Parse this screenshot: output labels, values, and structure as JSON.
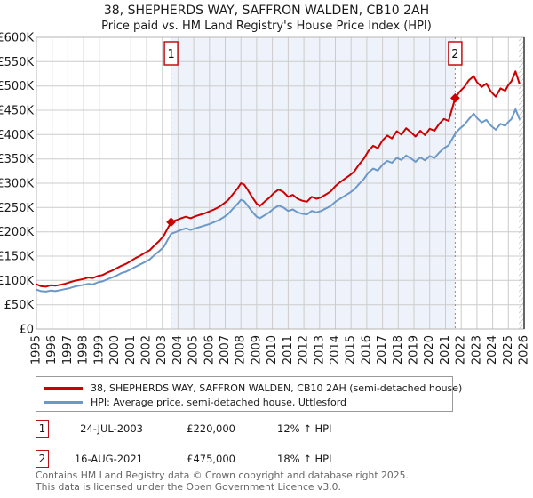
{
  "title": {
    "line1": "38, SHEPHERDS WAY, SAFFRON WALDEN, CB10 2AH",
    "line2": "Price paid vs. HM Land Registry's House Price Index (HPI)"
  },
  "chart_data": {
    "type": "line",
    "x_range": [
      1995,
      2026
    ],
    "y_max_k": 600,
    "values_unit": "GBP thousands",
    "x_ticks": [
      1995,
      1996,
      1997,
      1998,
      1999,
      2000,
      2001,
      2002,
      2003,
      2004,
      2005,
      2006,
      2007,
      2008,
      2009,
      2010,
      2011,
      2012,
      2013,
      2014,
      2015,
      2016,
      2017,
      2018,
      2019,
      2020,
      2021,
      2022,
      2023,
      2024,
      2025,
      2026
    ],
    "y_tick_values": [
      0,
      50,
      100,
      150,
      200,
      250,
      300,
      350,
      400,
      450,
      500,
      550,
      600
    ],
    "y_tick_labels": [
      "£0",
      "£50K",
      "£100K",
      "£150K",
      "£200K",
      "£250K",
      "£300K",
      "£350K",
      "£400K",
      "£450K",
      "£500K",
      "£550K",
      "£600K"
    ],
    "grid": true,
    "legend_position": "bottom",
    "colors": {
      "red": "#cc0000",
      "blue": "#6b98c8",
      "shaded": "#eef2fa",
      "grid": "#cccccc",
      "border": "#b5b5b5",
      "right_edge": "#555555",
      "dashed": "#e66a6a",
      "hatch": "#c9c9c9",
      "marker_box": "#c01015"
    },
    "shaded_span": [
      2003.56,
      2021.62
    ],
    "hatch_span": [
      2025.67,
      2026
    ],
    "markers": [
      {
        "label": "1",
        "date_year": 2003.56,
        "price_k": 220
      },
      {
        "label": "2",
        "date_year": 2021.62,
        "price_k": 475
      }
    ],
    "series": [
      {
        "id": "price-paid",
        "name": "38, SHEPHERDS WAY, SAFFRON WALDEN, CB10 2AH (semi-detached house)",
        "color": "#cc0000",
        "points": [
          [
            1995.0,
            92
          ],
          [
            1995.3,
            88
          ],
          [
            1995.6,
            87
          ],
          [
            1995.9,
            90
          ],
          [
            1996.2,
            89
          ],
          [
            1996.5,
            91
          ],
          [
            1996.8,
            93
          ],
          [
            1997.1,
            96
          ],
          [
            1997.4,
            99
          ],
          [
            1997.7,
            101
          ],
          [
            1998.0,
            103
          ],
          [
            1998.3,
            106
          ],
          [
            1998.6,
            105
          ],
          [
            1998.9,
            109
          ],
          [
            1999.2,
            111
          ],
          [
            1999.5,
            116
          ],
          [
            1999.8,
            120
          ],
          [
            2000.1,
            125
          ],
          [
            2000.4,
            130
          ],
          [
            2000.7,
            134
          ],
          [
            2001.0,
            140
          ],
          [
            2001.3,
            146
          ],
          [
            2001.6,
            151
          ],
          [
            2001.9,
            157
          ],
          [
            2002.2,
            162
          ],
          [
            2002.5,
            172
          ],
          [
            2002.8,
            181
          ],
          [
            2003.1,
            192
          ],
          [
            2003.56,
            220
          ],
          [
            2003.9,
            224
          ],
          [
            2004.2,
            228
          ],
          [
            2004.5,
            231
          ],
          [
            2004.8,
            228
          ],
          [
            2005.1,
            232
          ],
          [
            2005.4,
            235
          ],
          [
            2005.7,
            238
          ],
          [
            2006.0,
            242
          ],
          [
            2006.3,
            246
          ],
          [
            2006.6,
            251
          ],
          [
            2006.9,
            258
          ],
          [
            2007.2,
            266
          ],
          [
            2007.5,
            278
          ],
          [
            2007.8,
            290
          ],
          [
            2008.0,
            300
          ],
          [
            2008.2,
            297
          ],
          [
            2008.4,
            288
          ],
          [
            2008.7,
            272
          ],
          [
            2009.0,
            258
          ],
          [
            2009.2,
            253
          ],
          [
            2009.5,
            262
          ],
          [
            2009.8,
            270
          ],
          [
            2010.1,
            280
          ],
          [
            2010.4,
            287
          ],
          [
            2010.7,
            282
          ],
          [
            2011.0,
            272
          ],
          [
            2011.3,
            276
          ],
          [
            2011.6,
            268
          ],
          [
            2011.9,
            264
          ],
          [
            2012.2,
            262
          ],
          [
            2012.5,
            272
          ],
          [
            2012.8,
            268
          ],
          [
            2013.1,
            271
          ],
          [
            2013.4,
            277
          ],
          [
            2013.7,
            283
          ],
          [
            2014.0,
            294
          ],
          [
            2014.3,
            302
          ],
          [
            2014.6,
            309
          ],
          [
            2014.9,
            316
          ],
          [
            2015.2,
            324
          ],
          [
            2015.5,
            338
          ],
          [
            2015.8,
            350
          ],
          [
            2016.1,
            366
          ],
          [
            2016.4,
            377
          ],
          [
            2016.7,
            372
          ],
          [
            2017.0,
            388
          ],
          [
            2017.3,
            398
          ],
          [
            2017.6,
            392
          ],
          [
            2017.9,
            407
          ],
          [
            2018.2,
            400
          ],
          [
            2018.5,
            413
          ],
          [
            2018.8,
            405
          ],
          [
            2019.1,
            396
          ],
          [
            2019.4,
            408
          ],
          [
            2019.7,
            399
          ],
          [
            2020.0,
            412
          ],
          [
            2020.3,
            408
          ],
          [
            2020.6,
            422
          ],
          [
            2020.9,
            432
          ],
          [
            2021.2,
            428
          ],
          [
            2021.62,
            475
          ],
          [
            2021.9,
            488
          ],
          [
            2022.2,
            498
          ],
          [
            2022.5,
            512
          ],
          [
            2022.8,
            520
          ],
          [
            2023.0,
            508
          ],
          [
            2023.3,
            498
          ],
          [
            2023.6,
            505
          ],
          [
            2023.9,
            488
          ],
          [
            2024.2,
            478
          ],
          [
            2024.5,
            495
          ],
          [
            2024.8,
            490
          ],
          [
            2025.0,
            502
          ],
          [
            2025.2,
            510
          ],
          [
            2025.45,
            530
          ],
          [
            2025.7,
            505
          ]
        ]
      },
      {
        "id": "hpi",
        "name": "HPI: Average price, semi-detached house, Uttlesford",
        "color": "#6b98c8",
        "points": [
          [
            1995.0,
            81
          ],
          [
            1995.3,
            78
          ],
          [
            1995.6,
            77
          ],
          [
            1995.9,
            79
          ],
          [
            1996.2,
            78
          ],
          [
            1996.5,
            80
          ],
          [
            1996.8,
            82
          ],
          [
            1997.1,
            84
          ],
          [
            1997.4,
            87
          ],
          [
            1997.7,
            89
          ],
          [
            1998.0,
            91
          ],
          [
            1998.3,
            93
          ],
          [
            1998.6,
            92
          ],
          [
            1998.9,
            96
          ],
          [
            1999.2,
            98
          ],
          [
            1999.5,
            102
          ],
          [
            1999.8,
            106
          ],
          [
            2000.1,
            110
          ],
          [
            2000.4,
            115
          ],
          [
            2000.7,
            118
          ],
          [
            2001.0,
            123
          ],
          [
            2001.3,
            128
          ],
          [
            2001.6,
            133
          ],
          [
            2001.9,
            138
          ],
          [
            2002.2,
            143
          ],
          [
            2002.5,
            152
          ],
          [
            2002.8,
            160
          ],
          [
            2003.1,
            169
          ],
          [
            2003.56,
            196
          ],
          [
            2003.9,
            200
          ],
          [
            2004.2,
            204
          ],
          [
            2004.5,
            207
          ],
          [
            2004.8,
            204
          ],
          [
            2005.1,
            207
          ],
          [
            2005.4,
            210
          ],
          [
            2005.7,
            213
          ],
          [
            2006.0,
            216
          ],
          [
            2006.3,
            220
          ],
          [
            2006.6,
            224
          ],
          [
            2006.9,
            230
          ],
          [
            2007.2,
            237
          ],
          [
            2007.5,
            248
          ],
          [
            2007.8,
            258
          ],
          [
            2008.0,
            266
          ],
          [
            2008.2,
            263
          ],
          [
            2008.4,
            255
          ],
          [
            2008.7,
            242
          ],
          [
            2009.0,
            231
          ],
          [
            2009.2,
            228
          ],
          [
            2009.5,
            234
          ],
          [
            2009.8,
            240
          ],
          [
            2010.1,
            248
          ],
          [
            2010.4,
            254
          ],
          [
            2010.7,
            250
          ],
          [
            2011.0,
            243
          ],
          [
            2011.3,
            246
          ],
          [
            2011.6,
            240
          ],
          [
            2011.9,
            237
          ],
          [
            2012.2,
            236
          ],
          [
            2012.5,
            243
          ],
          [
            2012.8,
            240
          ],
          [
            2013.1,
            243
          ],
          [
            2013.4,
            248
          ],
          [
            2013.7,
            253
          ],
          [
            2014.0,
            262
          ],
          [
            2014.3,
            268
          ],
          [
            2014.6,
            274
          ],
          [
            2014.9,
            280
          ],
          [
            2015.2,
            287
          ],
          [
            2015.5,
            298
          ],
          [
            2015.8,
            308
          ],
          [
            2016.1,
            322
          ],
          [
            2016.4,
            330
          ],
          [
            2016.7,
            326
          ],
          [
            2017.0,
            338
          ],
          [
            2017.3,
            346
          ],
          [
            2017.6,
            342
          ],
          [
            2017.9,
            352
          ],
          [
            2018.2,
            348
          ],
          [
            2018.5,
            357
          ],
          [
            2018.8,
            351
          ],
          [
            2019.1,
            344
          ],
          [
            2019.4,
            353
          ],
          [
            2019.7,
            347
          ],
          [
            2020.0,
            356
          ],
          [
            2020.3,
            352
          ],
          [
            2020.6,
            363
          ],
          [
            2020.9,
            372
          ],
          [
            2021.2,
            378
          ],
          [
            2021.62,
            402
          ],
          [
            2021.9,
            412
          ],
          [
            2022.2,
            420
          ],
          [
            2022.5,
            432
          ],
          [
            2022.8,
            443
          ],
          [
            2023.0,
            434
          ],
          [
            2023.3,
            425
          ],
          [
            2023.6,
            430
          ],
          [
            2023.9,
            418
          ],
          [
            2024.2,
            410
          ],
          [
            2024.5,
            422
          ],
          [
            2024.8,
            418
          ],
          [
            2025.0,
            426
          ],
          [
            2025.2,
            432
          ],
          [
            2025.45,
            452
          ],
          [
            2025.7,
            432
          ]
        ]
      }
    ]
  },
  "legend": {
    "items": [
      {
        "label": "38, SHEPHERDS WAY, SAFFRON WALDEN, CB10 2AH (semi-detached house)",
        "color": "#cc0000"
      },
      {
        "label": "HPI: Average price, semi-detached house, Uttlesford",
        "color": "#6b98c8"
      }
    ]
  },
  "transactions": [
    {
      "num": "1",
      "date": "24-JUL-2003",
      "price": "£220,000",
      "hpi": "12% ↑ HPI"
    },
    {
      "num": "2",
      "date": "16-AUG-2021",
      "price": "£475,000",
      "hpi": "18% ↑ HPI"
    }
  ],
  "footer": {
    "line1": "Contains HM Land Registry data © Crown copyright and database right 2025.",
    "line2": "This data is licensed under the Open Government Licence v3.0."
  }
}
